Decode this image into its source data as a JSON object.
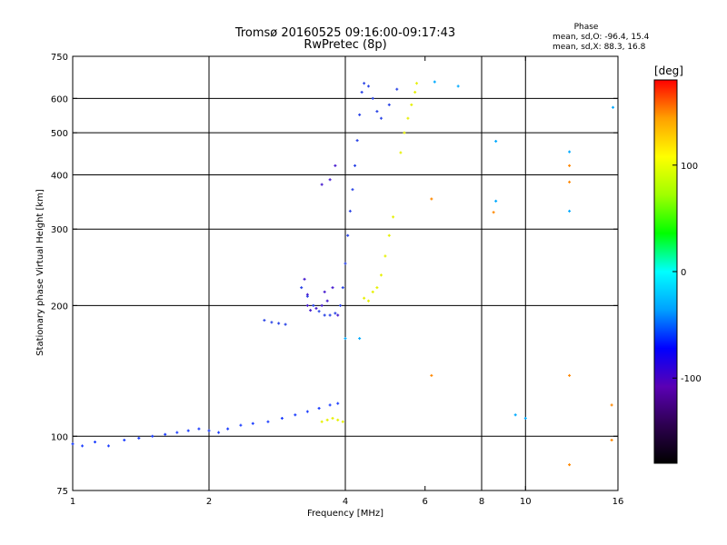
{
  "chart_data": {
    "type": "scatter",
    "title": "Tromsø 20160525 09:16:00-09:17:43",
    "subtitle": "RwPretec (8p)",
    "xlabel": "Frequency [MHz]",
    "ylabel": "Stationary phase Virtual Height [km]",
    "x_scale": "log",
    "y_scale": "log",
    "xlim": [
      1,
      16
    ],
    "ylim": [
      75,
      750
    ],
    "x_ticks": [
      1,
      2,
      4,
      6,
      8,
      10,
      16
    ],
    "y_ticks": [
      75,
      100,
      200,
      300,
      400,
      500,
      600,
      750
    ],
    "x_gridlines": [
      2,
      4,
      8,
      10
    ],
    "y_gridlines": [
      100,
      200,
      300,
      400,
      500,
      600
    ],
    "grid": true,
    "phase_box": {
      "heading": "Phase",
      "line_o": "mean, sd,O: -96.4, 15.4",
      "line_x": "mean, sd,X:  88.3, 16.8"
    },
    "colorbar": {
      "label": "[deg]",
      "range": [
        -180,
        180
      ],
      "ticks": [
        100,
        0,
        -100
      ],
      "stops": [
        "#000000",
        "#2d0050",
        "#5a00b4",
        "#0000ff",
        "#00a0ff",
        "#00ffff",
        "#00ff00",
        "#a0ff00",
        "#ffff00",
        "#ffa000",
        "#ff0000"
      ]
    },
    "series": [
      {
        "color": "#1a3cff",
        "points": [
          [
            1.0,
            96
          ],
          [
            1.05,
            95
          ],
          [
            1.12,
            97
          ],
          [
            1.2,
            95
          ],
          [
            1.3,
            98
          ],
          [
            1.4,
            99
          ],
          [
            1.5,
            100
          ],
          [
            1.6,
            101
          ],
          [
            1.7,
            102
          ],
          [
            1.8,
            103
          ],
          [
            1.9,
            104
          ],
          [
            2.0,
            103
          ],
          [
            2.1,
            102
          ],
          [
            2.2,
            104
          ],
          [
            2.35,
            106
          ],
          [
            2.5,
            107
          ],
          [
            2.7,
            108
          ],
          [
            2.9,
            110
          ],
          [
            3.1,
            112
          ],
          [
            3.3,
            114
          ],
          [
            3.5,
            116
          ],
          [
            3.7,
            118
          ],
          [
            3.85,
            119
          ]
        ]
      },
      {
        "color": "#2a44e6",
        "points": [
          [
            2.65,
            185
          ],
          [
            2.75,
            183
          ],
          [
            2.85,
            182
          ],
          [
            2.95,
            181
          ],
          [
            3.2,
            220
          ],
          [
            3.3,
            210
          ],
          [
            3.4,
            200
          ],
          [
            3.5,
            194
          ],
          [
            3.6,
            190
          ],
          [
            3.7,
            190
          ],
          [
            3.8,
            192
          ],
          [
            3.9,
            200
          ],
          [
            3.95,
            220
          ],
          [
            4.0,
            250
          ],
          [
            4.05,
            290
          ],
          [
            4.1,
            330
          ],
          [
            4.15,
            370
          ],
          [
            4.2,
            420
          ],
          [
            4.25,
            480
          ],
          [
            4.3,
            550
          ],
          [
            4.35,
            620
          ],
          [
            4.4,
            650
          ],
          [
            4.5,
            640
          ],
          [
            4.6,
            600
          ],
          [
            4.7,
            560
          ],
          [
            4.8,
            540
          ],
          [
            5.0,
            580
          ],
          [
            5.2,
            630
          ]
        ]
      },
      {
        "color": "#4a1fd0",
        "points": [
          [
            3.25,
            230
          ],
          [
            3.3,
            200
          ],
          [
            3.35,
            195
          ],
          [
            3.45,
            197
          ],
          [
            3.55,
            200
          ],
          [
            3.65,
            205
          ],
          [
            3.75,
            220
          ],
          [
            3.85,
            190
          ],
          [
            3.55,
            380
          ],
          [
            3.7,
            390
          ],
          [
            3.8,
            420
          ],
          [
            3.3,
            212
          ],
          [
            3.6,
            215
          ]
        ]
      },
      {
        "color": "#e6f000",
        "points": [
          [
            3.55,
            108
          ],
          [
            3.65,
            109
          ],
          [
            3.75,
            110
          ],
          [
            3.85,
            109
          ],
          [
            3.95,
            108
          ],
          [
            4.4,
            208
          ],
          [
            4.5,
            205
          ],
          [
            4.6,
            215
          ],
          [
            4.7,
            220
          ],
          [
            4.8,
            235
          ],
          [
            4.9,
            260
          ],
          [
            5.0,
            290
          ],
          [
            5.1,
            320
          ],
          [
            5.3,
            450
          ],
          [
            5.4,
            500
          ],
          [
            5.5,
            540
          ],
          [
            5.6,
            580
          ],
          [
            5.7,
            620
          ],
          [
            5.75,
            650
          ]
        ]
      },
      {
        "color": "#ff8800",
        "points": [
          [
            6.2,
            352
          ],
          [
            8.5,
            328
          ],
          [
            12.5,
            420
          ],
          [
            12.5,
            385
          ],
          [
            15.5,
            98
          ],
          [
            12.5,
            86
          ],
          [
            6.2,
            138
          ],
          [
            12.5,
            138
          ],
          [
            15.5,
            118
          ]
        ]
      },
      {
        "color": "#00aaff",
        "points": [
          [
            6.3,
            655
          ],
          [
            7.1,
            640
          ],
          [
            8.6,
            478
          ],
          [
            8.6,
            348
          ],
          [
            9.5,
            112
          ],
          [
            10.0,
            110
          ],
          [
            12.5,
            452
          ],
          [
            12.5,
            330
          ],
          [
            15.6,
            572
          ],
          [
            4.3,
            168
          ],
          [
            4.0,
            168
          ]
        ]
      }
    ]
  }
}
